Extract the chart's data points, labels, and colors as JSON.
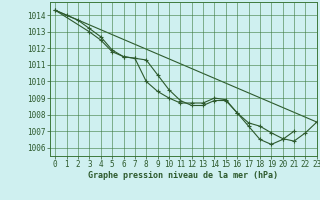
{
  "bg_color": "#cff0f0",
  "grid_color": "#3d7a3d",
  "line_color": "#2d5a2d",
  "xlim": [
    -0.5,
    23
  ],
  "ylim": [
    1005.5,
    1014.8
  ],
  "xlabel": "Graphe pression niveau de la mer (hPa)",
  "series1_x": [
    0,
    1,
    2,
    3,
    4,
    5,
    6,
    7,
    8,
    9,
    10,
    11,
    12,
    13,
    14,
    15,
    16,
    17,
    18,
    19,
    20,
    21
  ],
  "series1_y": [
    1014.3,
    1014.0,
    1013.7,
    1013.2,
    1012.7,
    1011.9,
    1011.5,
    1011.4,
    1010.0,
    1009.4,
    1009.0,
    1008.7,
    1008.7,
    1008.7,
    1009.0,
    1008.9,
    1008.1,
    1007.3,
    1006.5,
    1006.2,
    1006.5,
    1007.0
  ],
  "series2_x": [
    0,
    3,
    4,
    5,
    6,
    7,
    8,
    9,
    10,
    11,
    12,
    13,
    14,
    15,
    16,
    17,
    18,
    19,
    20,
    21,
    22,
    23
  ],
  "series2_y": [
    1014.3,
    1013.0,
    1012.5,
    1011.8,
    1011.5,
    1011.4,
    1011.3,
    1010.4,
    1009.5,
    1008.85,
    1008.55,
    1008.55,
    1008.85,
    1008.85,
    1008.1,
    1007.5,
    1007.3,
    1006.9,
    1006.55,
    1006.4,
    1006.9,
    1007.55
  ],
  "series3_x": [
    0,
    23
  ],
  "series3_y": [
    1014.3,
    1007.55
  ],
  "xticks": [
    0,
    1,
    2,
    3,
    4,
    5,
    6,
    7,
    8,
    9,
    10,
    11,
    12,
    13,
    14,
    15,
    16,
    17,
    18,
    19,
    20,
    21,
    22,
    23
  ],
  "yticks": [
    1006,
    1007,
    1008,
    1009,
    1010,
    1011,
    1012,
    1013,
    1014
  ],
  "tick_fontsize": 5.5,
  "xlabel_fontsize": 6.0
}
